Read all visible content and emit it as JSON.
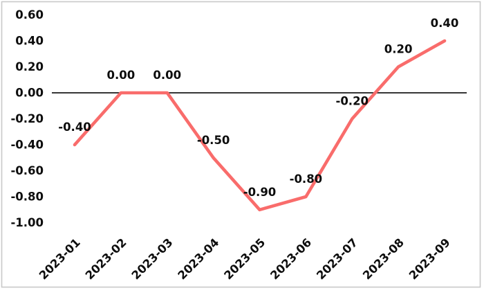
{
  "chart_data": {
    "type": "line",
    "title": "",
    "xlabel": "",
    "ylabel": "",
    "x": [
      "2023-01",
      "2023-02",
      "2023-03",
      "2023-04",
      "2023-05",
      "2023-06",
      "2023-07",
      "2023-08",
      "2023-09"
    ],
    "values": [
      -0.4,
      0.0,
      0.0,
      -0.5,
      -0.9,
      -0.8,
      -0.2,
      0.2,
      0.4
    ],
    "point_labels": [
      "-0.40",
      "0.00",
      "0.00",
      "-0.50",
      "-0.90",
      "-0.80",
      "-0.20",
      "0.20",
      "0.40"
    ],
    "y_tick_labels": [
      "0.60",
      "0.40",
      "0.20",
      "0.00",
      "-0.20",
      "-0.40",
      "-0.60",
      "-0.80",
      "-1.00"
    ],
    "y_tick_values": [
      0.6,
      0.4,
      0.2,
      0.0,
      -0.2,
      -0.4,
      -0.6,
      -0.8,
      -1.0
    ],
    "ylim": [
      -1.0,
      0.6
    ],
    "grid": false,
    "legend": "none",
    "zero_line": true,
    "x_label_rotation_deg": -45,
    "colors": {
      "series_line": "#f96c6b",
      "zero_axis": "#1a1a1a",
      "tick_text": "#0d0d0d",
      "data_label_text": "#0d0d0d",
      "frame_border": "#c9c9c9",
      "background": "#ffffff"
    }
  }
}
